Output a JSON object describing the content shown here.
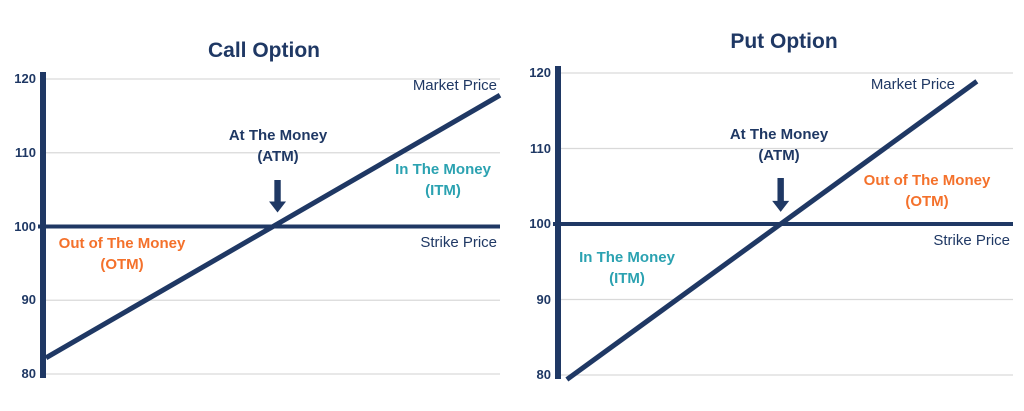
{
  "figure": {
    "background": "#FFFFFF"
  },
  "colors": {
    "navy": "#1F3864",
    "teal": "#2BA2B1",
    "orange": "#F4712B",
    "gridline": "#D9D9D9"
  },
  "chart_data": [
    {
      "type": "line",
      "title": "Call Option",
      "ylabel": "",
      "xlabel": "",
      "ylim": [
        80,
        120
      ],
      "y_ticks": [
        120,
        110,
        100,
        90,
        80
      ],
      "grid": true,
      "legend": "none",
      "series": [
        {
          "name": "Market Price",
          "color": "#1F3864",
          "x": [
            0,
            1
          ],
          "y": [
            82.2,
            117.8
          ]
        },
        {
          "name": "Strike Price",
          "color": "#1F3864",
          "x": [
            0,
            1
          ],
          "y": [
            100,
            100
          ]
        }
      ],
      "annotations": {
        "market_price_label": "Market Price",
        "strike_price_label": "Strike Price",
        "atm_line1": "At The Money",
        "atm_line2": "(ATM)",
        "itm_line1": "In The Money",
        "itm_line2": "(ITM)",
        "otm_line1": "Out of The Money",
        "otm_line2": "(OTM)",
        "arrow": {
          "x_frac": 0.51,
          "y_tail": 106.3,
          "y_tip": 101.9
        }
      }
    },
    {
      "type": "line",
      "title": "Put Option",
      "ylabel": "",
      "xlabel": "",
      "ylim": [
        80,
        120
      ],
      "y_ticks": [
        120,
        110,
        100,
        90,
        80
      ],
      "grid": true,
      "legend": "none",
      "series": [
        {
          "name": "Market Price",
          "color": "#1F3864",
          "x": [
            0.013,
            0.92
          ],
          "y": [
            79.4,
            118.9
          ]
        },
        {
          "name": "Strike Price",
          "color": "#1F3864",
          "x": [
            0,
            1
          ],
          "y": [
            100,
            100
          ]
        }
      ],
      "annotations": {
        "market_price_label": "Market Price",
        "strike_price_label": "Strike Price",
        "atm_line1": "At The Money",
        "atm_line2": "(ATM)",
        "itm_line1": "In The Money",
        "itm_line2": "(ITM)",
        "otm_line1": "Out of The Money",
        "otm_line2": "(OTM)",
        "arrow": {
          "x_frac": 0.486,
          "y_tail": 106.1,
          "y_tip": 101.6
        }
      }
    }
  ]
}
